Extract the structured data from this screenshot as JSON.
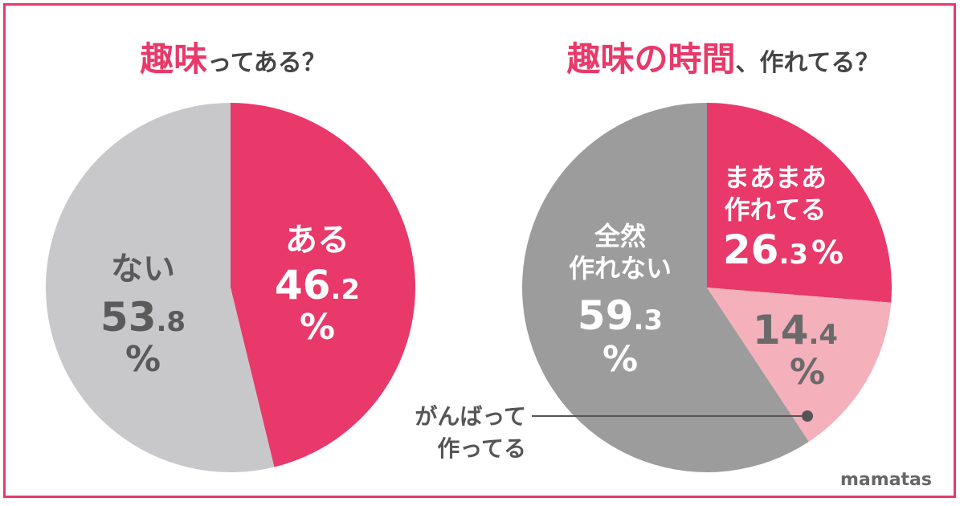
{
  "chart_data": [
    {
      "type": "pie",
      "title_em": "趣味",
      "title_rest": "ってある？",
      "slices": [
        {
          "label": "ある",
          "value": 46.2,
          "color": "#e8396a",
          "text_color": "#ffffff"
        },
        {
          "label": "ない",
          "value": 53.8,
          "color": "#c8c8ca",
          "text_color": "#5a5a5a"
        }
      ],
      "unit": "%"
    },
    {
      "type": "pie",
      "title_em": "趣味の時間",
      "title_rest": "、作れてる？",
      "slices": [
        {
          "label": "まあまあ 作れてる",
          "value": 26.3,
          "color": "#e8396a",
          "text_color": "#ffffff"
        },
        {
          "label": "がんばって 作ってる",
          "value": 14.4,
          "color": "#f4b0bb",
          "text_color": "#6a6a6a"
        },
        {
          "label": "全然 作れない",
          "value": 59.3,
          "color": "#9c9c9c",
          "text_color": "#ffffff"
        }
      ],
      "unit": "%"
    }
  ],
  "brand": "mamatas"
}
